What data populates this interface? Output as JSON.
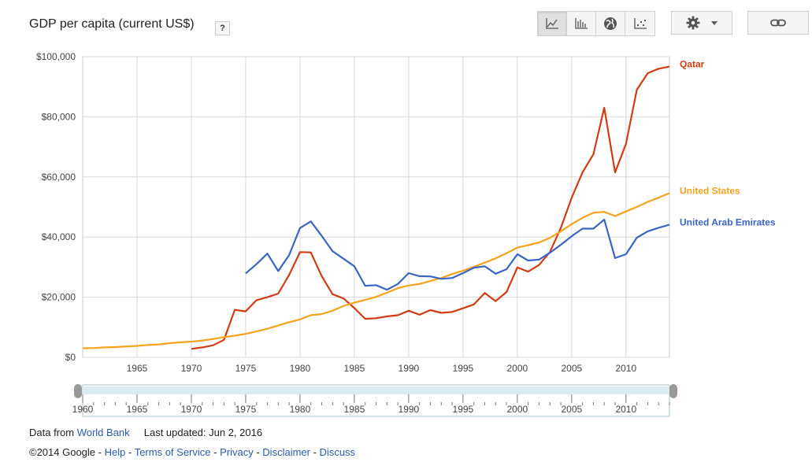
{
  "header": {
    "title": "GDP per capita (current US$)",
    "help_label": "?"
  },
  "toolbar": {
    "buttons": [
      {
        "icon": "line-chart-icon",
        "active": true
      },
      {
        "icon": "bar-chart-icon",
        "active": false
      },
      {
        "icon": "globe-icon",
        "active": false
      },
      {
        "icon": "scatter-chart-icon",
        "active": false
      }
    ],
    "settings_icon": "gear-icon",
    "link_icon": "link-icon"
  },
  "footer": {
    "data_from_label": "Data from",
    "data_source": "World Bank",
    "last_updated": "Last updated: Jun 2, 2016",
    "copyright": "©2014 Google",
    "links": [
      "Help",
      "Terms of Service",
      "Privacy",
      "Disclaimer",
      "Discuss"
    ]
  },
  "chart_data": {
    "type": "line",
    "xlim": [
      1960,
      2014
    ],
    "ylim": [
      0,
      100000
    ],
    "y_ticks": [
      0,
      20000,
      40000,
      60000,
      80000,
      100000
    ],
    "y_tick_labels": [
      "$0",
      "$20,000",
      "$40,000",
      "$60,000",
      "$80,000",
      "$100,000"
    ],
    "x_ticks": [
      1965,
      1970,
      1975,
      1980,
      1985,
      1990,
      1995,
      2000,
      2005,
      2010
    ],
    "x_tick_labels": [
      "1965",
      "1970",
      "1975",
      "1980",
      "1985",
      "1990",
      "1995",
      "2000",
      "2005",
      "2010"
    ],
    "grid": true,
    "legend": "right, at series ends",
    "series": [
      {
        "name": "Qatar",
        "color": "#d03c13",
        "x": [
          1970,
          1971,
          1972,
          1973,
          1974,
          1975,
          1976,
          1977,
          1978,
          1979,
          1980,
          1981,
          1982,
          1983,
          1984,
          1985,
          1986,
          1987,
          1988,
          1989,
          1990,
          1991,
          1992,
          1993,
          1994,
          1995,
          1996,
          1997,
          1998,
          1999,
          2000,
          2001,
          2002,
          2003,
          2004,
          2005,
          2006,
          2007,
          2008,
          2009,
          2010,
          2011,
          2012,
          2013,
          2014
        ],
        "y": [
          2800,
          3300,
          4000,
          5800,
          15800,
          15300,
          19000,
          20000,
          21200,
          27400,
          35000,
          34900,
          27000,
          21000,
          19600,
          16400,
          12800,
          13000,
          13600,
          14000,
          15500,
          14200,
          15700,
          14800,
          15100,
          16300,
          17600,
          21400,
          18700,
          21700,
          29900,
          28500,
          30700,
          35000,
          43000,
          53000,
          61500,
          67500,
          83000,
          61500,
          71000,
          89000,
          94500,
          96000,
          96700
        ]
      },
      {
        "name": "United States",
        "color": "#f6a21c",
        "x": [
          1960,
          1961,
          1962,
          1963,
          1964,
          1965,
          1966,
          1967,
          1968,
          1969,
          1970,
          1971,
          1972,
          1973,
          1974,
          1975,
          1976,
          1977,
          1978,
          1979,
          1980,
          1981,
          1982,
          1983,
          1984,
          1985,
          1986,
          1987,
          1988,
          1989,
          1990,
          1991,
          1992,
          1993,
          1994,
          1995,
          1996,
          1997,
          1998,
          1999,
          2000,
          2001,
          2002,
          2003,
          2004,
          2005,
          2006,
          2007,
          2008,
          2009,
          2010,
          2011,
          2012,
          2013,
          2014
        ],
        "y": [
          3000,
          3100,
          3300,
          3400,
          3600,
          3800,
          4100,
          4300,
          4700,
          5000,
          5200,
          5600,
          6100,
          6700,
          7200,
          7800,
          8600,
          9500,
          10600,
          11700,
          12600,
          14000,
          14400,
          15500,
          17100,
          18200,
          19100,
          20100,
          21500,
          23000,
          23900,
          24400,
          25400,
          26400,
          27700,
          28800,
          30100,
          31500,
          32900,
          34600,
          36500,
          37300,
          38200,
          39700,
          41900,
          44300,
          46400,
          48100,
          48400,
          47000,
          48500,
          50000,
          51700,
          53100,
          54600
        ]
      },
      {
        "name": "United Arab Emirates",
        "color": "#3a65c4",
        "x": [
          1975,
          1976,
          1977,
          1978,
          1979,
          1980,
          1981,
          1982,
          1983,
          1984,
          1985,
          1986,
          1987,
          1988,
          1989,
          1990,
          1991,
          1992,
          1993,
          1994,
          1995,
          1996,
          1997,
          1998,
          1999,
          2000,
          2001,
          2002,
          2003,
          2004,
          2005,
          2006,
          2007,
          2008,
          2009,
          2010,
          2011,
          2012,
          2013,
          2014
        ],
        "y": [
          27900,
          31000,
          34500,
          28700,
          34000,
          43000,
          45200,
          40400,
          35300,
          32800,
          30300,
          23800,
          24000,
          22500,
          24400,
          28000,
          27000,
          26900,
          26100,
          26400,
          28000,
          29800,
          30300,
          27800,
          29300,
          34300,
          32200,
          32500,
          34800,
          37400,
          40300,
          42800,
          42800,
          45800,
          33000,
          34300,
          39800,
          41900,
          43100,
          44100
        ]
      }
    ]
  }
}
